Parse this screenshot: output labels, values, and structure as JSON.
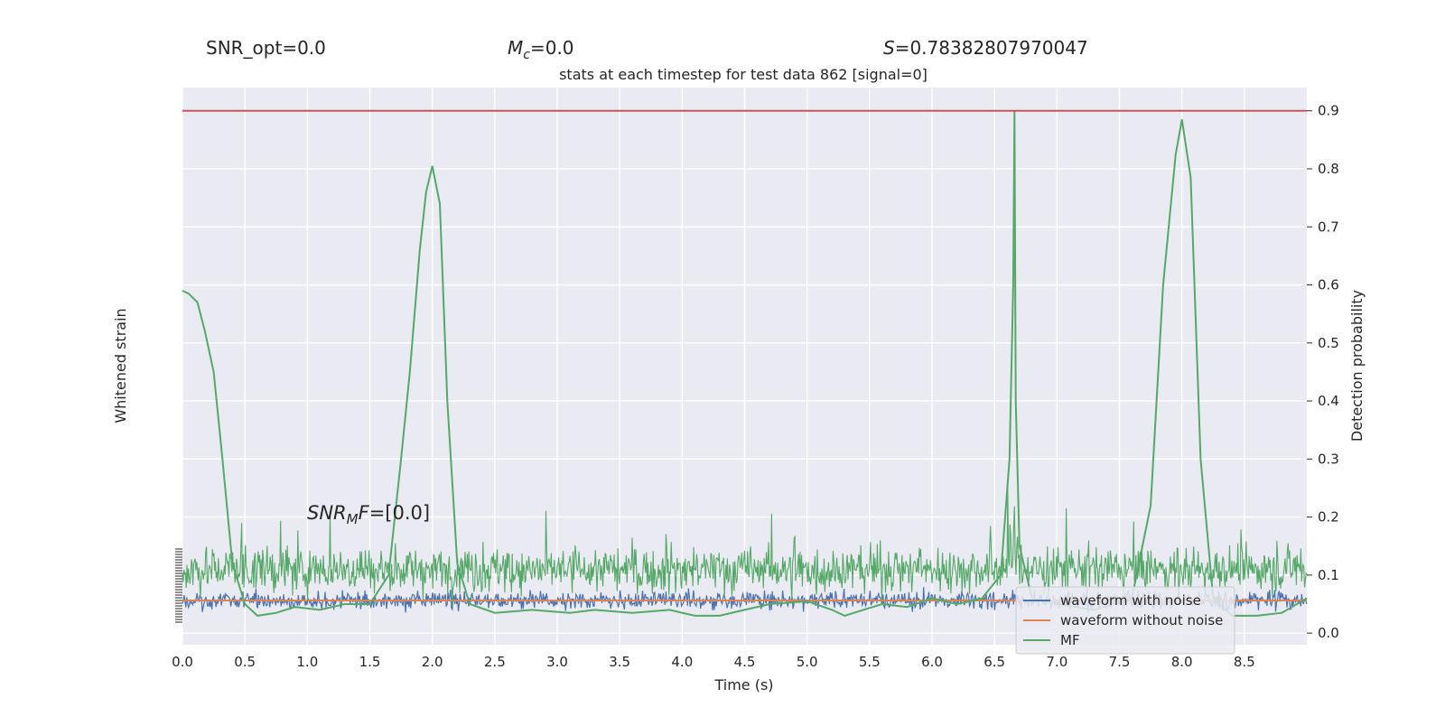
{
  "header": {
    "snr_opt": "SNR_opt=0.0",
    "mc_symbol": "M",
    "mc_sub": "c",
    "mc_value": "=0.0",
    "s_symbol": "S",
    "s_value": "=0.78382807970047"
  },
  "chart_data": {
    "type": "line",
    "title": "stats at each timestep for test data 862 [signal=0]",
    "xlabel": "Time (s)",
    "ylabel_left": "Whitened strain",
    "ylabel_right": "Detection probability",
    "xlim": [
      0.0,
      9.0
    ],
    "ylim_right": [
      -0.02,
      0.94
    ],
    "x_ticks": [
      "0.0",
      "0.5",
      "1.0",
      "1.5",
      "2.0",
      "2.5",
      "3.0",
      "3.5",
      "4.0",
      "4.5",
      "5.0",
      "5.5",
      "6.0",
      "6.5",
      "7.0",
      "7.5",
      "8.0",
      "8.5"
    ],
    "y_ticks_right": [
      "0.0",
      "0.1",
      "0.2",
      "0.3",
      "0.4",
      "0.5",
      "0.6",
      "0.7",
      "0.8",
      "0.9"
    ],
    "threshold": 0.9,
    "annotation": {
      "prefix": "SNR",
      "sub": "M",
      "mid": "F",
      "value": "=[0.0]"
    },
    "legend": {
      "placement": "lower-right",
      "entries": [
        {
          "label": "waveform with noise",
          "color": "#4c72b0"
        },
        {
          "label": "waveform without noise",
          "color": "#dd8452"
        },
        {
          "label": "MF",
          "color": "#55a868"
        }
      ]
    },
    "series": [
      {
        "name": "waveform with noise",
        "color": "#4c72b0",
        "note": "whitened strain noise around 0 (approx ±2 on left axis)"
      },
      {
        "name": "waveform without noise",
        "color": "#dd8452",
        "values_constant": 0.0
      },
      {
        "name": "MF",
        "color": "#55a868",
        "smooth_x": [
          0.0,
          0.05,
          0.12,
          0.18,
          0.25,
          0.32,
          0.4,
          0.5,
          0.6,
          0.75,
          0.9,
          1.1,
          1.3,
          1.5,
          1.65,
          1.75,
          1.82,
          1.9,
          1.95,
          2.0,
          2.06,
          2.12,
          2.2,
          2.3,
          2.5,
          2.8,
          3.1,
          3.3,
          3.6,
          3.9,
          4.1,
          4.3,
          4.5,
          4.7,
          5.0,
          5.2,
          5.3,
          5.45,
          5.6,
          5.8,
          6.0,
          6.2,
          6.4,
          6.55,
          6.62,
          6.65,
          6.66,
          6.67,
          6.7,
          6.8,
          7.0,
          7.3,
          7.6,
          7.75,
          7.85,
          7.95,
          8.0,
          8.07,
          8.15,
          8.25,
          8.4,
          8.6,
          8.8,
          9.0
        ],
        "smooth_y": [
          0.59,
          0.585,
          0.57,
          0.52,
          0.45,
          0.3,
          0.12,
          0.05,
          0.03,
          0.035,
          0.045,
          0.04,
          0.05,
          0.05,
          0.1,
          0.3,
          0.45,
          0.66,
          0.76,
          0.805,
          0.74,
          0.4,
          0.12,
          0.05,
          0.035,
          0.04,
          0.035,
          0.04,
          0.035,
          0.04,
          0.03,
          0.03,
          0.04,
          0.05,
          0.055,
          0.04,
          0.03,
          0.04,
          0.05,
          0.045,
          0.06,
          0.05,
          0.06,
          0.1,
          0.3,
          0.6,
          0.9,
          0.4,
          0.15,
          0.06,
          0.05,
          0.04,
          0.06,
          0.22,
          0.6,
          0.825,
          0.885,
          0.785,
          0.3,
          0.06,
          0.03,
          0.03,
          0.035,
          0.06
        ]
      }
    ]
  }
}
